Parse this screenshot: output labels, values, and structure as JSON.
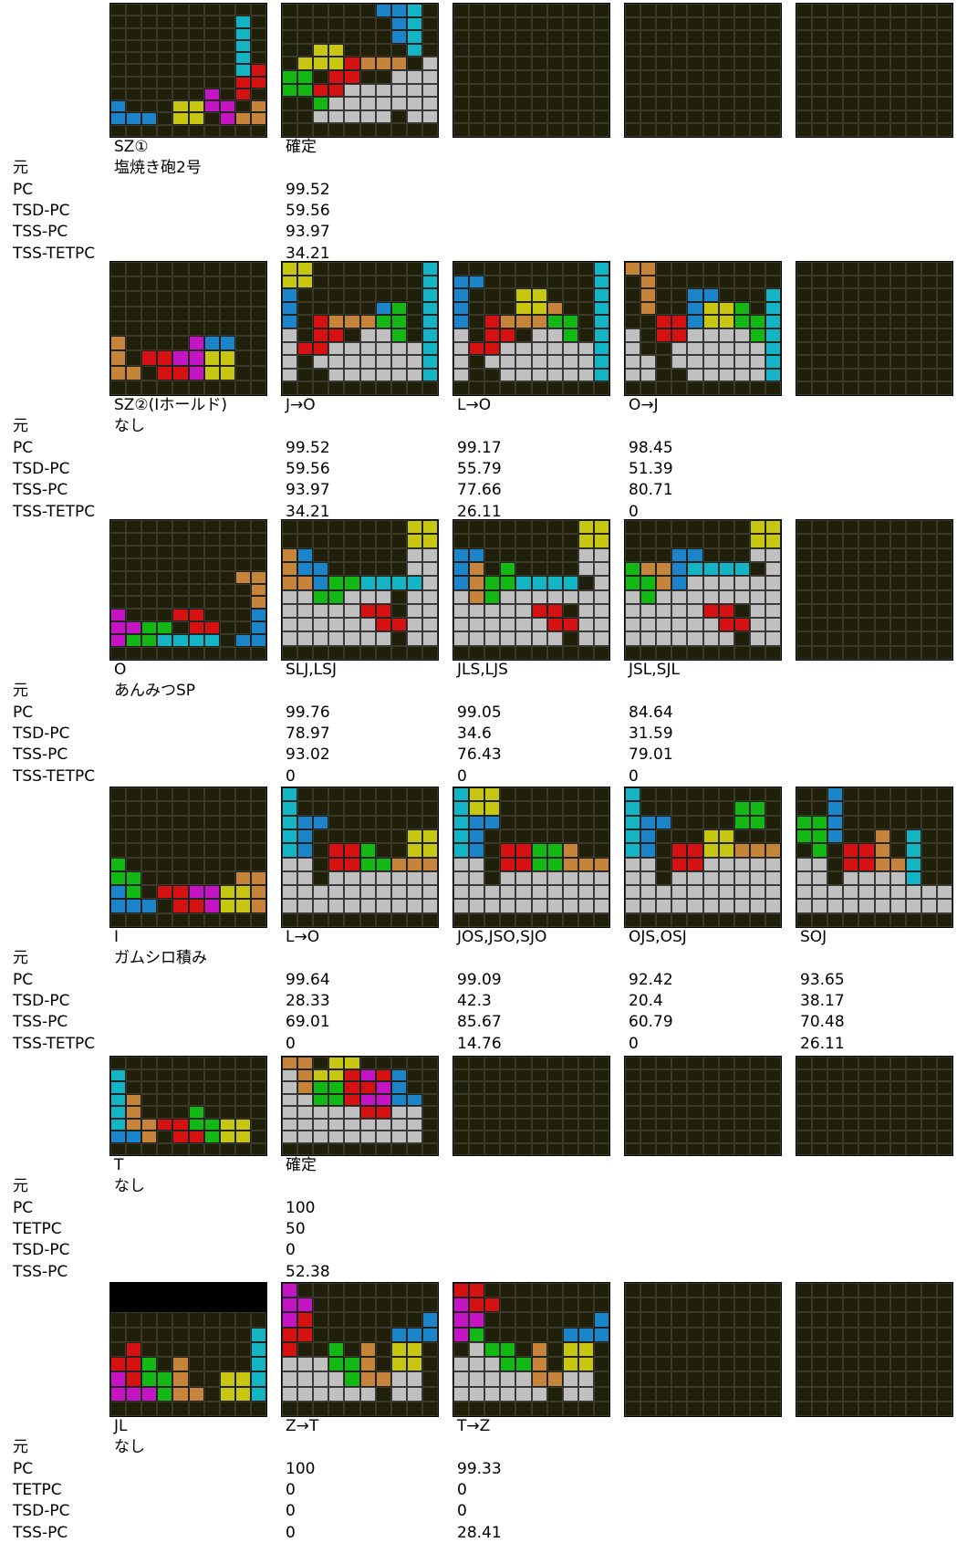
{
  "colors": {
    "I": "#13b5c5",
    "O": "#c7c711",
    "T": "#c414c4",
    "S": "#14b814",
    "Z": "#d51111",
    "J": "#1c84c8",
    "L": "#c6843a",
    "G": "#c0c0c0",
    "E": "#1f1f0a"
  },
  "sections": [
    {
      "title": "SZ①",
      "source_label": "元",
      "source_value": "塩焼き砲2号",
      "metric_labels": [
        "PC",
        "TSD-PC",
        "TSS-PC",
        "TSS-TETPC"
      ],
      "boards": [
        {
          "rows": [
            "EEEEEEEEEE",
            "EEEEEEEEIE",
            "EEEEEEEEIE",
            "EEEEEEEEIE",
            "EEEEEEEEIE",
            "EEEEEEEEIZ",
            "EEEEEEEEZZ",
            "EEEEEETEZE",
            "JEEEOOTTEL",
            "JJJEOOETLL",
            "EEEEEEEEEE"
          ],
          "caption": "",
          "values": []
        },
        {
          "rows": [
            "EEEEEEJJIE",
            "EEEEEEEJIE",
            "EEEEEEEJIE",
            "EEOOEEEEIE",
            "EOOOZLLLEG",
            "SSEZZEEGGG",
            "SSZZGGGGGG",
            "EESGGGGGGG",
            "EEGGGGGEGG",
            "EEEEEEEEEE"
          ],
          "caption": "確定",
          "values": [
            "99.52",
            "59.56",
            "93.97",
            "34.21"
          ]
        },
        {
          "rows": [
            "EEEEEEEEEE",
            "EEEEEEEEEE",
            "EEEEEEEEEE",
            "EEEEEEEEEE",
            "EEEEEEEEEE",
            "EEEEEEEEEE",
            "EEEEEEEEEE",
            "EEEEEEEEEE",
            "EEEEEEEEEE",
            "EEEEEEEEEE"
          ],
          "caption": "",
          "values": []
        },
        {
          "rows": [
            "EEEEEEEEEE",
            "EEEEEEEEEE",
            "EEEEEEEEEE",
            "EEEEEEEEEE",
            "EEEEEEEEEE",
            "EEEEEEEEEE",
            "EEEEEEEEEE",
            "EEEEEEEEEE",
            "EEEEEEEEEE",
            "EEEEEEEEEE"
          ],
          "caption": "",
          "values": []
        },
        {
          "rows": [
            "EEEEEEEEEE",
            "EEEEEEEEEE",
            "EEEEEEEEEE",
            "EEEEEEEEEE",
            "EEEEEEEEEE",
            "EEEEEEEEEE",
            "EEEEEEEEEE",
            "EEEEEEEEEE",
            "EEEEEEEEEE",
            "EEEEEEEEEE"
          ],
          "caption": "",
          "values": []
        }
      ]
    },
    {
      "title": "SZ②(Iホールド)",
      "source_label": "元",
      "source_value": "なし",
      "metric_labels": [
        "PC",
        "TSD-PC",
        "TSS-PC",
        "TSS-TETPC"
      ],
      "boards": [
        {
          "rows": [
            "EEEEEEEEEE",
            "EEEEEEEEEE",
            "EEEEEEEEEE",
            "EEEEEEEEEE",
            "EEEEEEEEEE",
            "LEEEETJJEE",
            "LEZZTTOOEE",
            "LLEZZTOOEE",
            "EEEEEEEEEE"
          ],
          "caption": "",
          "values": []
        },
        {
          "rows": [
            "OOEEEEEEEI",
            "OOEEEEEEEI",
            "JEEEEEEEEI",
            "JEEEEEJSEI",
            "JEZLLLSSEI",
            "GEZZEGGSEI",
            "GZZGGGGGGI",
            "GEGGGGGGGI",
            "GEEGGGGGGI",
            "EEEEEEEEEE"
          ],
          "caption": "J→O",
          "values": [
            "99.52",
            "59.56",
            "93.97",
            "34.21"
          ]
        },
        {
          "rows": [
            "EEEEEEEEEI",
            "JJEEEEEEEI",
            "JEEEOOEEEI",
            "JEEEOOLEEI",
            "JEZLLLSSEI",
            "GEZZEGGSEI",
            "GZZGGGGGGI",
            "GEGGGGGGGI",
            "GEEGGGGGGI",
            "EEEEEEEEEE"
          ],
          "caption": "L→O",
          "values": [
            "99.17",
            "55.79",
            "77.66",
            "26.11"
          ]
        },
        {
          "rows": [
            "LLEEEEEEEE",
            "ELEEEEEEEE",
            "ELEEJJEEEI",
            "ELEEJOOSEI",
            "EEZZJOOSSI",
            "GEZZGGGGSI",
            "GEEGGGGGGI",
            "GGEGGGGGGI",
            "GGEEGGGGGI",
            "EEEEEEEEEE"
          ],
          "caption": "O→J",
          "values": [
            "98.45",
            "51.39",
            "80.71",
            "0"
          ]
        },
        {
          "rows": [
            "EEEEEEEEEE",
            "EEEEEEEEEE",
            "EEEEEEEEEE",
            "EEEEEEEEEE",
            "EEEEEEEEEE",
            "EEEEEEEEEE",
            "EEEEEEEEEE",
            "EEEEEEEEEE",
            "EEEEEEEEEE",
            "EEEEEEEEEE"
          ],
          "caption": "",
          "values": []
        }
      ]
    },
    {
      "title": "O",
      "source_label": "元",
      "source_value": "あんみつSP",
      "metric_labels": [
        "PC",
        "TSD-PC",
        "TSS-PC",
        "TSS-TETPC"
      ],
      "boards": [
        {
          "rows": [
            "EEEEEEEEEE",
            "EEEEEEEEEE",
            "EEEEEEEEEE",
            "EEEEEEEEEE",
            "EEEEEEEELL",
            "EEEEEEEEEL",
            "EEEEEEEEEL",
            "TEEEZZEEEJ",
            "TTSSEZZEEJ",
            "TSSIIIIEJJ",
            "EEEEEEEEEE"
          ],
          "caption": "",
          "values": []
        },
        {
          "rows": [
            "EEEEEEEEOO",
            "EEEEEEEEOO",
            "LJEEEEEEGG",
            "LJJEEEEEGG",
            "LLJSSIIIIG",
            "GGSSGGGEGG",
            "GGGGGZZEGG",
            "GGGGGGZZGG",
            "GGGGGGGEGG",
            "EEEEEEEEEE"
          ],
          "caption": "SLJ,LSJ",
          "values": [
            "99.76",
            "78.97",
            "93.02",
            "0"
          ]
        },
        {
          "rows": [
            "EEEEEEEEOO",
            "EEEEEEEEOO",
            "JJEEEEEEGG",
            "JLESEEEEGG",
            "JLSSIIIIEG",
            "GLSGGGGGGG",
            "GGGGGZZEGG",
            "GGGGGGZZGG",
            "GGGGGGGEGG",
            "EEEEEEEEEE"
          ],
          "caption": "JLS,LJS",
          "values": [
            "99.05",
            "34.6",
            "76.43",
            "0"
          ]
        },
        {
          "rows": [
            "EEEEEEEEOO",
            "EEEEEEEEOO",
            "EEEJJEEEGG",
            "SLLJIIIIEG",
            "SSLJGGGGGG",
            "GSGGGGGGGG",
            "GGGGGZZEGG",
            "GGGGGGZZGG",
            "GGGGGGGEGG",
            "EEEEEEEEEE"
          ],
          "caption": "JSL,SJL",
          "values": [
            "84.64",
            "31.59",
            "79.01",
            "0"
          ]
        },
        {
          "rows": [
            "EEEEEEEEEE",
            "EEEEEEEEEE",
            "EEEEEEEEEE",
            "EEEEEEEEEE",
            "EEEEEEEEEE",
            "EEEEEEEEEE",
            "EEEEEEEEEE",
            "EEEEEEEEEE",
            "EEEEEEEEEE",
            "EEEEEEEEEE"
          ],
          "caption": "",
          "values": []
        }
      ]
    },
    {
      "title": "I",
      "source_label": "元",
      "source_value": "ガムシロ積み",
      "metric_labels": [
        "PC",
        "TSD-PC",
        "TSS-PC",
        "TSS-TETPC"
      ],
      "boards": [
        {
          "rows": [
            "EEEEEEEEEE",
            "EEEEEEEEEE",
            "EEEEEEEEEE",
            "EEEEEEEEEE",
            "EEEEEEEEEE",
            "SEEEEEEEEE",
            "SSEEEEEELL",
            "JSEZZTTOOL",
            "JJJEZZTOOL",
            "EEEEEEEEEE"
          ],
          "caption": "",
          "values": []
        },
        {
          "rows": [
            "IEEEEEEEEE",
            "IEEEEEEEEE",
            "IJJEEEEEEE",
            "IJEEEEEEOO",
            "IJEZZSEEOO",
            "GGEZZSSLLL",
            "GGEGGGGGGG",
            "GGGGGGGGGG",
            "GGGGGGGGGG",
            "EEEEEEEEEE"
          ],
          "caption": "L→O",
          "values": [
            "99.64",
            "28.33",
            "69.01",
            "0"
          ]
        },
        {
          "rows": [
            "IOOEEEEEEE",
            "IOOEEEEEEE",
            "IJJEEEEEEE",
            "IJEEEEEEEE",
            "IJEZZSSLEE",
            "GGEZZSSLLL",
            "GGEGGGGGGG",
            "GGGGGGGGGG",
            "GGGGGGGGGG",
            "EEEEEEEEEE"
          ],
          "caption": "JOS,JSO,SJO",
          "values": [
            "99.09",
            "42.3",
            "85.67",
            "14.76"
          ]
        },
        {
          "rows": [
            "IEEEEEEEEE",
            "IEEEEEESSE",
            "IJJEEEESSE",
            "IJEEEOOEEE",
            "IJEZZOOLLL",
            "GGEZZGGGGG",
            "GGEGGGGGGG",
            "GGGGGGGGGG",
            "GGGGGGGGGG",
            "EEEEEEEEEE"
          ],
          "caption": "OJS,OSJ",
          "values": [
            "92.42",
            "20.4",
            "60.79",
            "0"
          ]
        },
        {
          "rows": [
            "EEJEEEEEEE",
            "EEJEEEEEEE",
            "SSJEEEEEEE",
            "SSJEELEIEE",
            "ESEZZLEIEE",
            "GGEZZLLIEE",
            "GGEGGGGIEE",
            "GGGGGGGGGG",
            "GGGGGGGGGG",
            "EEEEEEEEEE"
          ],
          "caption": "SOJ",
          "values": [
            "93.65",
            "38.17",
            "70.48",
            "26.11"
          ]
        }
      ]
    },
    {
      "title": "T",
      "source_label": "元",
      "source_value": "なし",
      "metric_labels": [
        "PC",
        "TETPC",
        "TSD-PC",
        "TSS-PC"
      ],
      "boards": [
        {
          "rows": [
            "EEEEEEEEEE",
            "IEEEEEEEEE",
            "IEEEEEEEEE",
            "ILEEEEEEEE",
            "ILEEESEEEE",
            "ILLZZSSOOE",
            "JJLEZZSOOE",
            "EEEEEEEEEE"
          ],
          "caption": "",
          "values": []
        },
        {
          "rows": [
            "LLEOOEEEEE",
            "GLOOZTZJEE",
            "GLSSZZTJEE",
            "GGSSZTTJJE",
            "GGGGGZZGGE",
            "GGGGGGGGGE",
            "GGGGGGGGGE",
            "EEEEEEEEEE"
          ],
          "caption": "確定",
          "values": [
            "100",
            "50",
            "0",
            "52.38"
          ]
        },
        {
          "rows": [
            "EEEEEEEEEE",
            "EEEEEEEEEE",
            "EEEEEEEEEE",
            "EEEEEEEEEE",
            "EEEEEEEEEE",
            "EEEEEEEEEE",
            "EEEEEEEEEE",
            "EEEEEEEEEE"
          ],
          "caption": "",
          "values": []
        },
        {
          "rows": [
            "EEEEEEEEEE",
            "EEEEEEEEEE",
            "EEEEEEEEEE",
            "EEEEEEEEEE",
            "EEEEEEEEEE",
            "EEEEEEEEEE",
            "EEEEEEEEEE",
            "EEEEEEEEEE"
          ],
          "caption": "",
          "values": []
        },
        {
          "rows": [
            "EEEEEEEEEE",
            "EEEEEEEEEE",
            "EEEEEEEEEE",
            "EEEEEEEEEE",
            "EEEEEEEEEE",
            "EEEEEEEEEE",
            "EEEEEEEEEE",
            "EEEEEEEEEE"
          ],
          "caption": "",
          "values": []
        }
      ]
    },
    {
      "title": "JL",
      "source_label": "元",
      "source_value": "なし",
      "metric_labels": [
        "PC",
        "TETPC",
        "TSD-PC",
        "TSS-PC"
      ],
      "boards": [
        {
          "rows": [
            "KKKKKKKKKK",
            "KKKKKKKKKK",
            "EEEEEEEEEE",
            "EEEEEEEEEI",
            "EZEEEEEEEI",
            "ZZSELEEEEI",
            "TZSSLEEOOI",
            "TTTSLLEOOI",
            "EEEEEEEEEE"
          ],
          "caption": "",
          "values": []
        },
        {
          "rows": [
            "TEEEEEEEEE",
            "TTEEEEEEEE",
            "TZEEEEEEEJ",
            "ZZEEEEEJJJ",
            "ZEESELEOOE",
            "GGGSSLEOOE",
            "GGGGSLLGGE",
            "GGGGGGEGGE",
            "EEEEEEEEEE"
          ],
          "caption": "Z→T",
          "values": [
            "100",
            "0",
            "0",
            "0"
          ]
        },
        {
          "rows": [
            "ZZEEEEEEEE",
            "TZZEEEEEEE",
            "TTEEEEEEEJ",
            "TSEEEEEJJJ",
            "EGSSELEOOE",
            "GGGSSLEOOE",
            "GGGGGLLGGE",
            "GGGGGGEGGE",
            "EEEEEEEEEE"
          ],
          "caption": "T→Z",
          "values": [
            "99.33",
            "0",
            "0",
            "28.41"
          ]
        },
        {
          "rows": [
            "EEEEEEEEEE",
            "EEEEEEEEEE",
            "EEEEEEEEEE",
            "EEEEEEEEEE",
            "EEEEEEEEEE",
            "EEEEEEEEEE",
            "EEEEEEEEEE",
            "EEEEEEEEEE",
            "EEEEEEEEEE"
          ],
          "caption": "",
          "values": []
        },
        {
          "rows": [
            "EEEEEEEEEE",
            "EEEEEEEEEE",
            "EEEEEEEEEE",
            "EEEEEEEEEE",
            "EEEEEEEEEE",
            "EEEEEEEEEE",
            "EEEEEEEEEE",
            "EEEEEEEEEE",
            "EEEEEEEEEE"
          ],
          "caption": "",
          "values": []
        }
      ]
    }
  ]
}
